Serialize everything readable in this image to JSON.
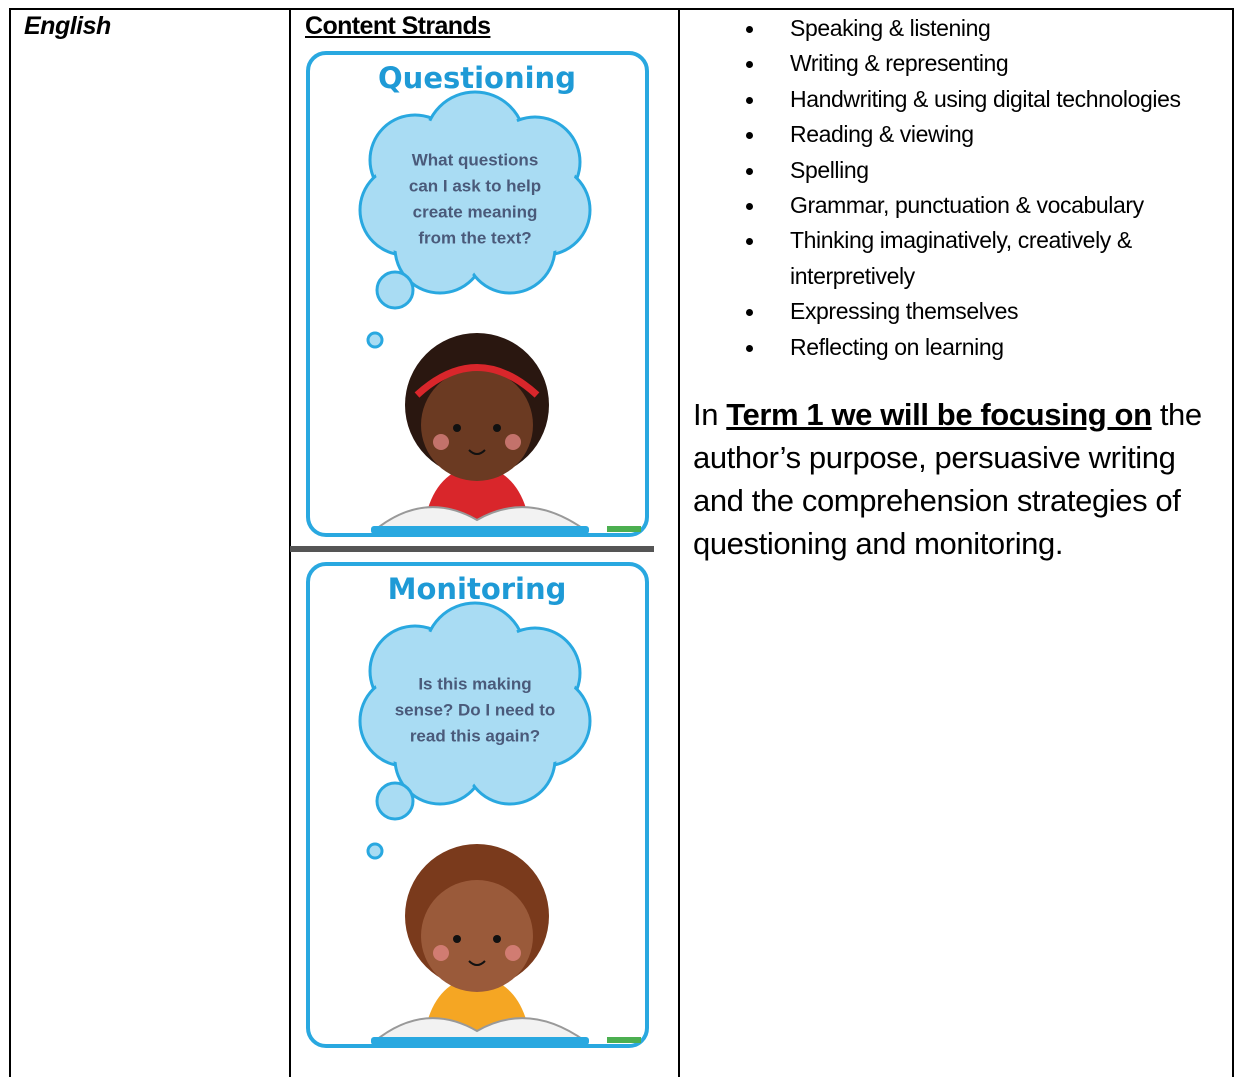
{
  "table": {
    "rows": [
      {
        "subject": "English",
        "heading": "Content Strands",
        "posters": [
          {
            "title": "Questioning",
            "question_lines": [
              "What questions",
              "can I ask to help",
              "create meaning",
              "from the text?"
            ]
          },
          {
            "title": "Monitoring",
            "question_lines": [
              "Is this making",
              "sense? Do I need to",
              "read this again?"
            ]
          }
        ],
        "strands": [
          "Speaking & listening",
          "Writing & representing",
          "Handwriting & using digital technologies",
          "Reading & viewing",
          "Spelling",
          "Grammar, punctuation & vocabulary",
          "Thinking imaginatively, creatively & interpretively",
          "Expressing themselves",
          "Reflecting on learning"
        ],
        "focus": {
          "lead": "In ",
          "emphasis": "Term 1 we will be focusing on",
          "rest": " the author’s purpose, persuasive writing and the comprehension strategies of questioning and monitoring."
        }
      }
    ]
  }
}
